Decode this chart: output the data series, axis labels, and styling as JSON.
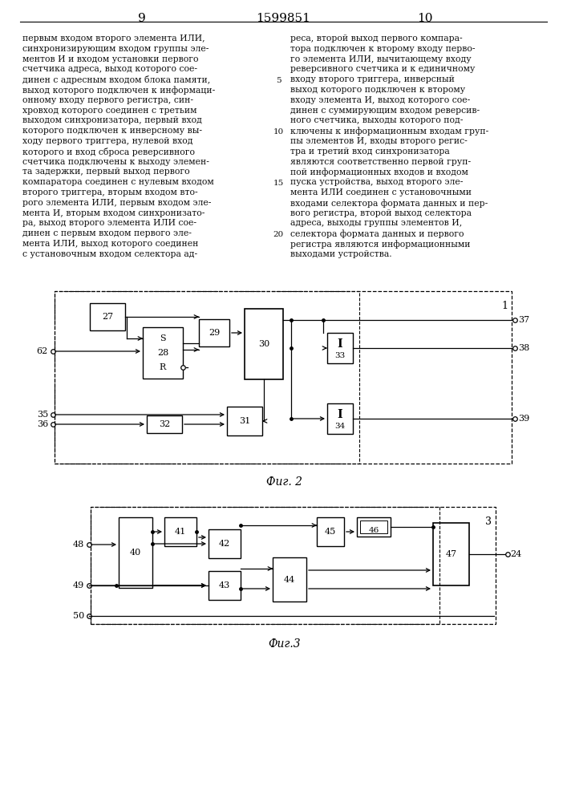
{
  "page_numbers": [
    "9",
    "10"
  ],
  "patent_number": "1599851",
  "left_text": [
    "первым входом второго элемента ИЛИ,",
    "синхронизирующим входом группы эле-",
    "ментов И и входом установки первого",
    "счетчика адреса, выход которого сое-",
    "динен с адресным входом блока памяти,",
    "выход которого подключен к информаци-",
    "онному входу первого регистра, син-",
    "хровход которого соединен с третьим",
    "выходом синхронизатора, первый вход",
    "которого подключен к инверсному вы-",
    "ходу первого триггера, нулевой вход",
    "которого и вход сброса реверсивного",
    "счетчика подключены к выходу элемен-",
    "та задержки, первый выход первого",
    "компаратора соединен с нулевым входом",
    "второго триггера, вторым входом вто-",
    "рого элемента ИЛИ, первым входом эле-",
    "мента И, вторым входом синхронизато-",
    "ра, выход второго элемента ИЛИ сое-",
    "динен с первым входом первого эле-",
    "мента ИЛИ, выход которого соединен",
    "с установочным входом селектора ад-"
  ],
  "right_text": [
    "реса, второй выход первого компара-",
    "тора подключен к второму входу перво-",
    "го элемента ИЛИ, вычитающему входу",
    "реверсивного счетчика и к единичному",
    "входу второго триггера, инверсный",
    "выход которого подключен к второму",
    "входу элемента И, выход которого сое-",
    "динен с суммирующим входом реверсив-",
    "ного счетчика, выходы которого под-",
    "ключены к информационным входам груп-",
    "пы элементов И, входы второго регис-",
    "тра и третий вход синхронизатора",
    "являются соответственно первой груп-",
    "пой информационных входов и входом",
    "пуска устройства, выход второго эле-",
    "мента ИЛИ соединен с установочными",
    "входами селектора формата данных и пер-",
    "вого регистра, второй выход селектора",
    "адреса, выходы группы элементов И,",
    "селектора формата данных и первого",
    "регистра являются информационными",
    "выходами устройства."
  ],
  "fig2_label": "Фиг. 2",
  "fig3_label": "Фиг.3",
  "bg_color": "#ffffff"
}
